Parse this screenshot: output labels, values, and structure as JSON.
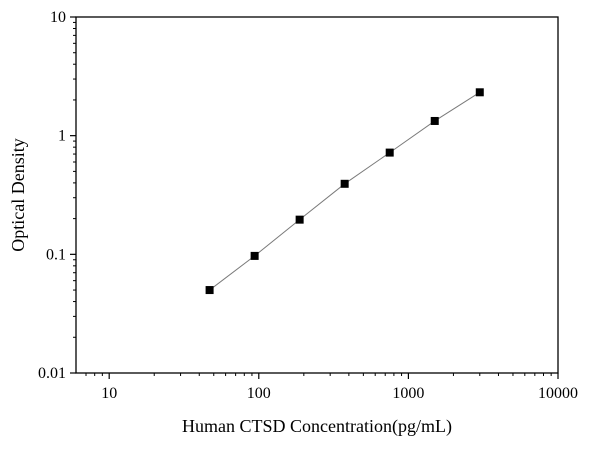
{
  "chart_data": {
    "type": "scatter",
    "title": "",
    "xlabel": "Human CTSD Concentration(pg/mL)",
    "ylabel": "Optical Density",
    "x_scale": "log",
    "y_scale": "log",
    "xlim": [
      6,
      10000
    ],
    "ylim": [
      0.01,
      10
    ],
    "x_ticks": [
      10,
      100,
      1000,
      10000
    ],
    "x_tick_labels": [
      "10",
      "100",
      "1000",
      "10000"
    ],
    "y_ticks": [
      0.01,
      0.1,
      1,
      10
    ],
    "y_tick_labels": [
      "0.01",
      "0.1",
      "1",
      "10"
    ],
    "grid": false,
    "legend": "none",
    "series": [
      {
        "marker": "square",
        "fit_line": true,
        "color": "#000000",
        "line_color": "#7a7a7a",
        "x": [
          46.9,
          93.8,
          187.5,
          375,
          750,
          1500,
          3000
        ],
        "y": [
          0.05,
          0.097,
          0.196,
          0.393,
          0.72,
          1.33,
          2.32
        ]
      }
    ]
  }
}
